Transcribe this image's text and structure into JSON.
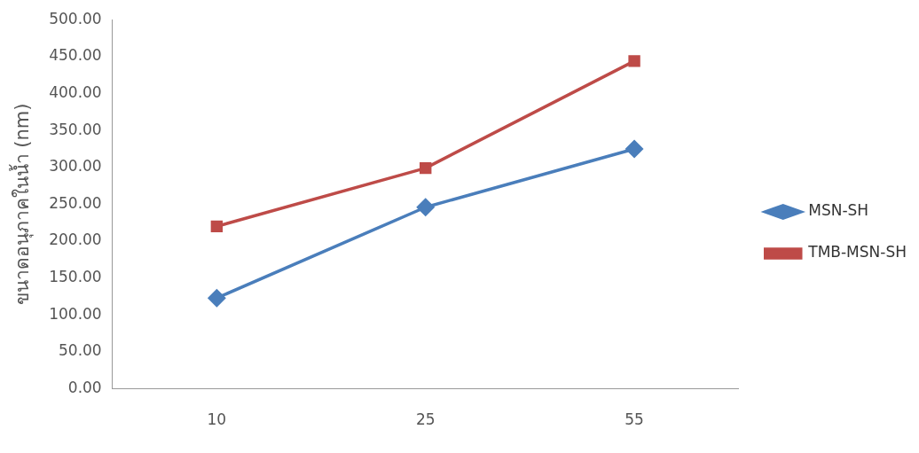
{
  "chart_data": {
    "type": "line",
    "ylabel": "ขนาดอนุภาคในน้ำ (nm)",
    "categories": [
      "10",
      "25",
      "55"
    ],
    "series": [
      {
        "name": "MSN-SH",
        "color": "#4a7ebb",
        "values": [
          123,
          246,
          325
        ]
      },
      {
        "name": "TMB-MSN-SH",
        "color": "#be4b48",
        "values": [
          220,
          299,
          444
        ]
      }
    ],
    "ylim": [
      0,
      500
    ],
    "yticks": [
      {
        "value": 0,
        "label": "0.00"
      },
      {
        "value": 50,
        "label": "50.00"
      },
      {
        "value": 100,
        "label": "100.00"
      },
      {
        "value": 150,
        "label": "150.00"
      },
      {
        "value": 200,
        "label": "200.00"
      },
      {
        "value": 250,
        "label": "250.00"
      },
      {
        "value": 300,
        "label": "300.00"
      },
      {
        "value": 350,
        "label": "350.00"
      },
      {
        "value": 400,
        "label": "400.00"
      },
      {
        "value": 450,
        "label": "450.00"
      },
      {
        "value": 500,
        "label": "500.00"
      }
    ],
    "grid": false,
    "legend": "right",
    "marker": [
      "diamond",
      "square"
    ],
    "line_style": "solid"
  }
}
